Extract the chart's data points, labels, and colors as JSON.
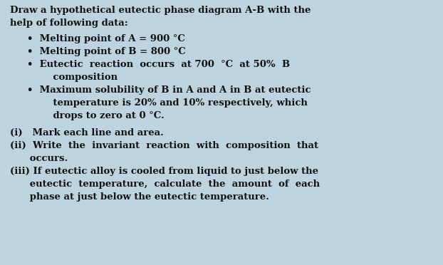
{
  "background_color": "#bdd4e0",
  "text_color": "#111111",
  "font_size": 9.5,
  "fig_width": 6.22,
  "fig_height": 3.72,
  "dpi": 100,
  "title_line1": "Draw a hypothetical eutectic phase diagram A-B with the",
  "title_line2": "help of following data:",
  "bullet1": "Melting point of A = 900 °C",
  "bullet2": "Melting point of B = 800 °C",
  "bullet3a": "Eutectic  reaction  occurs  at 700  °C  at 50%  B",
  "bullet3b": "    composition",
  "bullet4a": "Maximum solubility of B in A and A in B at eutectic",
  "bullet4b": "    temperature is 20% and 10% respectively, which",
  "bullet4c": "    drops to zero at 0 °C.",
  "q1": "(i)   Mark each line and area.",
  "q2a": "(ii)  Write  the  invariant  reaction  with  composition  that",
  "q2b": "      occurs.",
  "q3a": "(iii) If eutectic alloy is cooled from liquid to just below the",
  "q3b": "      eutectic  temperature,  calculate  the  amount  of  each",
  "q3c": "      phase at just below the eutectic temperature."
}
